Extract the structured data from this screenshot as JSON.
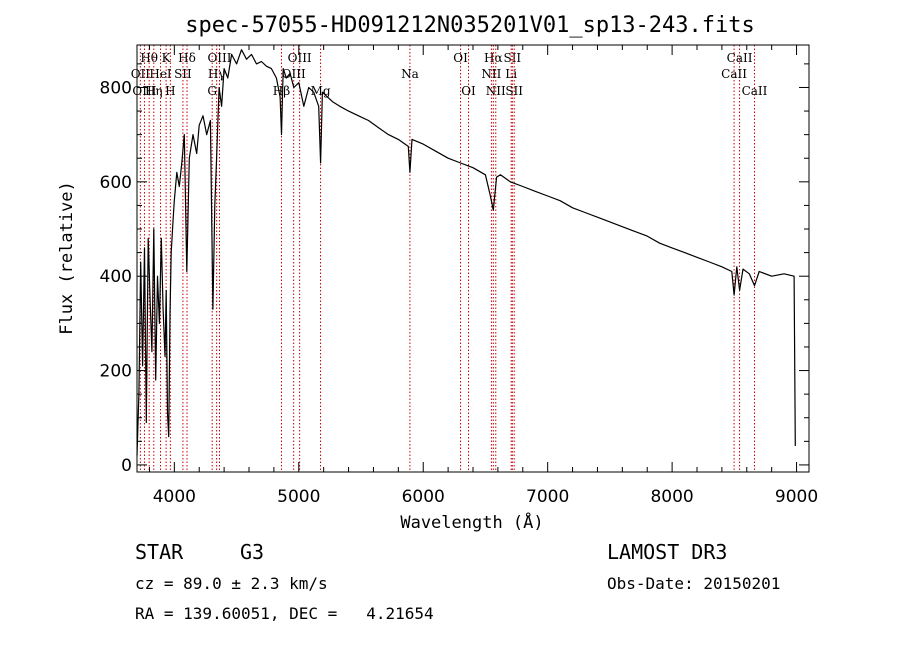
{
  "chart_data": {
    "type": "line",
    "title": "spec-57055-HD091212N035201V01_sp13-243.fits",
    "xlabel": "Wavelength (Å)",
    "ylabel": "Flux (relative)",
    "xlim": [
      3700,
      9100
    ],
    "ylim": [
      -15,
      890
    ],
    "xticks": [
      4000,
      5000,
      6000,
      7000,
      8000,
      9000
    ],
    "xtick_labels": [
      "4000",
      "5000",
      "6000",
      "7000",
      "8000",
      "9000"
    ],
    "yticks": [
      0,
      200,
      400,
      600,
      800
    ],
    "ytick_labels": [
      "0",
      "200",
      "400",
      "600",
      "800"
    ],
    "series": [
      {
        "name": "flux",
        "x": [
          3700,
          3715,
          3730,
          3745,
          3760,
          3775,
          3790,
          3805,
          3820,
          3835,
          3850,
          3865,
          3880,
          3895,
          3910,
          3925,
          3935,
          3945,
          3955,
          3965,
          3975,
          3990,
          4000,
          4020,
          4040,
          4060,
          4080,
          4100,
          4120,
          4150,
          4180,
          4200,
          4230,
          4260,
          4290,
          4310,
          4325,
          4340,
          4360,
          4380,
          4400,
          4430,
          4460,
          4500,
          4540,
          4580,
          4620,
          4660,
          4700,
          4740,
          4780,
          4820,
          4850,
          4861,
          4875,
          4900,
          4930,
          4960,
          5000,
          5040,
          5080,
          5120,
          5160,
          5175,
          5190,
          5230,
          5270,
          5330,
          5400,
          5480,
          5560,
          5640,
          5720,
          5800,
          5880,
          5893,
          5910,
          6000,
          6100,
          6200,
          6300,
          6400,
          6500,
          6540,
          6563,
          6590,
          6620,
          6700,
          6800,
          6900,
          7000,
          7100,
          7200,
          7300,
          7400,
          7500,
          7600,
          7700,
          7800,
          7900,
          8000,
          8100,
          8200,
          8300,
          8400,
          8480,
          8498,
          8520,
          8542,
          8570,
          8620,
          8662,
          8700,
          8800,
          8900,
          8980,
          8990
        ],
        "y": [
          20,
          150,
          430,
          210,
          460,
          90,
          480,
          350,
          240,
          500,
          180,
          400,
          300,
          480,
          330,
          230,
          370,
          110,
          60,
          320,
          450,
          520,
          560,
          620,
          590,
          640,
          700,
          410,
          650,
          700,
          660,
          720,
          740,
          700,
          730,
          330,
          550,
          650,
          800,
          760,
          840,
          820,
          870,
          850,
          880,
          860,
          870,
          850,
          855,
          845,
          840,
          820,
          780,
          700,
          840,
          820,
          830,
          800,
          810,
          760,
          800,
          790,
          760,
          640,
          790,
          780,
          770,
          760,
          750,
          740,
          730,
          715,
          700,
          690,
          675,
          620,
          690,
          680,
          665,
          650,
          640,
          630,
          615,
          570,
          540,
          610,
          615,
          600,
          590,
          580,
          570,
          560,
          545,
          535,
          525,
          515,
          505,
          495,
          485,
          470,
          460,
          450,
          440,
          430,
          420,
          410,
          360,
          420,
          370,
          415,
          405,
          380,
          410,
          400,
          405,
          400,
          40
        ]
      }
    ],
    "spectral_lines": [
      {
        "label": "Hθ",
        "x": 3798,
        "row": 1
      },
      {
        "label": "OII",
        "x": 3727,
        "row": 2
      },
      {
        "label": "OIII",
        "x": 3760,
        "row": 3
      },
      {
        "label": "K",
        "x": 3934,
        "row": 1
      },
      {
        "label": "HeI",
        "x": 3889,
        "row": 2
      },
      {
        "label": "Hη",
        "x": 3835,
        "row": 3
      },
      {
        "label": "H",
        "x": 3968,
        "row": 3
      },
      {
        "label": "Hδ",
        "x": 4102,
        "row": 1
      },
      {
        "label": "SII",
        "x": 4069,
        "row": 2
      },
      {
        "label": "OIII",
        "x": 4363,
        "row": 1
      },
      {
        "label": "Hγ",
        "x": 4340,
        "row": 2
      },
      {
        "label": "G",
        "x": 4304,
        "row": 3
      },
      {
        "label": "Hβ",
        "x": 4861,
        "row": 3
      },
      {
        "label": "OIII",
        "x": 5007,
        "row": 1
      },
      {
        "label": "OIII",
        "x": 4959,
        "row": 2
      },
      {
        "label": "Mg",
        "x": 5175,
        "row": 3
      },
      {
        "label": "Na",
        "x": 5893,
        "row": 2
      },
      {
        "label": "OI",
        "x": 6300,
        "row": 1
      },
      {
        "label": "OI",
        "x": 6364,
        "row": 3
      },
      {
        "label": "Hα",
        "x": 6563,
        "row": 1
      },
      {
        "label": "NII",
        "x": 6548,
        "row": 2
      },
      {
        "label": "NII",
        "x": 6583,
        "row": 3
      },
      {
        "label": "SII",
        "x": 6716,
        "row": 1
      },
      {
        "label": "Li",
        "x": 6707,
        "row": 2
      },
      {
        "label": "SII",
        "x": 6731,
        "row": 3
      },
      {
        "label": "CaII",
        "x": 8542,
        "row": 1
      },
      {
        "label": "CaII",
        "x": 8498,
        "row": 2
      },
      {
        "label": "CaII",
        "x": 8662,
        "row": 3
      }
    ]
  },
  "info": {
    "object_type": "STAR",
    "subclass": "G3",
    "survey": "LAMOST DR3",
    "cz": "cz = 89.0 ± 2.3 km/s",
    "obs_date": "Obs-Date: 20150201",
    "coords": "RA = 139.60051, DEC =   4.21654"
  },
  "colors": {
    "line": "#000000",
    "marker": "#cc0000",
    "background": "#ffffff"
  }
}
